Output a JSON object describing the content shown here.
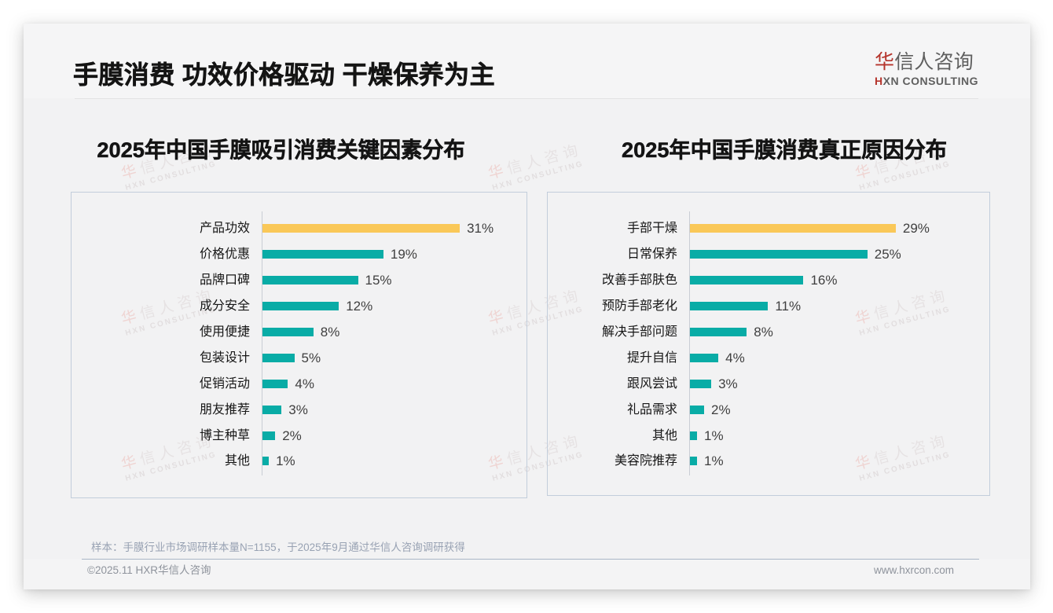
{
  "header": {
    "title": "手膜消费 功效价格驱动 干燥保养为主",
    "logo": {
      "zh_first": "华",
      "zh_rest": "信人咨询",
      "en_first": "H",
      "en_rest": "XN CONSULTING"
    }
  },
  "watermark": {
    "zh_first": "华",
    "zh_rest": "信人咨询",
    "en": "HXN CONSULTING"
  },
  "footer": {
    "note": "样本：手膜行业市场调研样本量N=1155，于2025年9月通过华信人咨询调研获得",
    "copyright": "©2025.11 HXR华信人咨询",
    "website": "www.hxrcon.com"
  },
  "colors": {
    "highlight_gold": "#fac858",
    "bar_teal": "#09aca6",
    "logo_red": "#c0392b"
  },
  "chart_data": [
    {
      "type": "bar",
      "orientation": "horizontal",
      "title": "2025年中国手膜吸引消费关键因素分布",
      "categories": [
        "产品功效",
        "价格优惠",
        "品牌口碑",
        "成分安全",
        "使用便捷",
        "包装设计",
        "促销活动",
        "朋友推荐",
        "博主种草",
        "其他"
      ],
      "values": [
        31,
        19,
        15,
        12,
        8,
        5,
        4,
        3,
        2,
        1
      ],
      "value_labels": [
        "31%",
        "19%",
        "15%",
        "12%",
        "8%",
        "5%",
        "4%",
        "3%",
        "2%",
        "1%"
      ],
      "unit": "%",
      "xlim": [
        0,
        35
      ],
      "grid": false,
      "legend": false,
      "highlight_index": 0,
      "highlight_color": "#fac858",
      "bar_color": "#09aca6"
    },
    {
      "type": "bar",
      "orientation": "horizontal",
      "title": "2025年中国手膜消费真正原因分布",
      "categories": [
        "手部干燥",
        "日常保养",
        "改善手部肤色",
        "预防手部老化",
        "解决手部问题",
        "提升自信",
        "跟风尝试",
        "礼品需求",
        "其他",
        "美容院推荐"
      ],
      "values": [
        29,
        25,
        16,
        11,
        8,
        4,
        3,
        2,
        1,
        1
      ],
      "value_labels": [
        "29%",
        "25%",
        "16%",
        "11%",
        "8%",
        "4%",
        "3%",
        "2%",
        "1%",
        "1%"
      ],
      "unit": "%",
      "xlim": [
        0,
        31
      ],
      "grid": false,
      "legend": false,
      "highlight_index": 0,
      "highlight_color": "#fac858",
      "bar_color": "#09aca6"
    }
  ]
}
